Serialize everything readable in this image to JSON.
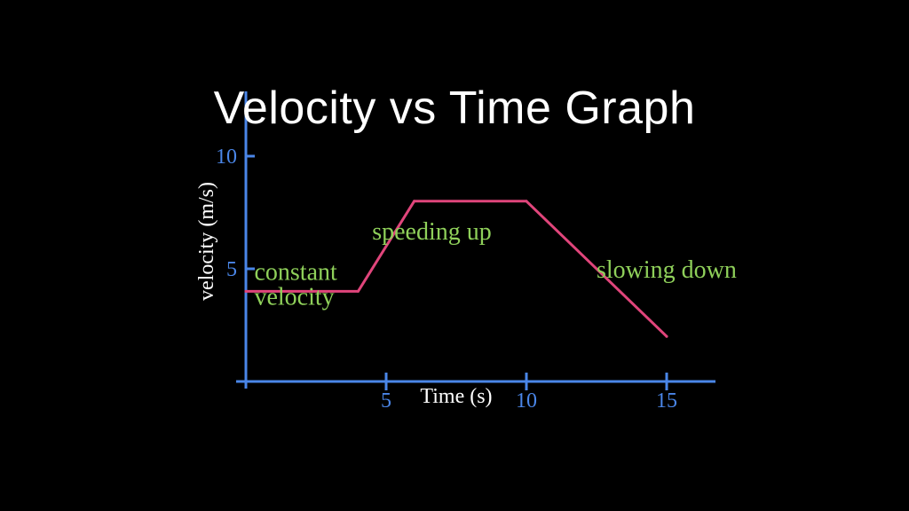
{
  "title": "Velocity vs Time Graph",
  "chart_data": {
    "type": "line",
    "title": "Velocity vs Time Graph",
    "xlabel": "Time (s)",
    "ylabel": "velocity (m/s)",
    "xlim": [
      0,
      17
    ],
    "ylim": [
      0,
      11
    ],
    "x_ticks": [
      5,
      10,
      15
    ],
    "y_ticks": [
      5,
      10
    ],
    "grid": false,
    "series": [
      {
        "color": "#e0457b",
        "x": [
          0,
          4,
          6,
          10,
          15
        ],
        "y": [
          4,
          4,
          8,
          8,
          2
        ]
      }
    ],
    "annotations": [
      {
        "text": "speeding up",
        "x": 4.5,
        "y": 6.3
      },
      {
        "text": "constant",
        "x": 0.3,
        "y": 4.5
      },
      {
        "text": "velocity",
        "x": 0.3,
        "y": 3.4
      },
      {
        "text": "slowing down",
        "x": 12.5,
        "y": 4.6
      }
    ],
    "colors": {
      "axis": "#4a86e8",
      "line": "#e0457b",
      "annotation": "#8fd05a",
      "label": "#ffffff"
    }
  }
}
